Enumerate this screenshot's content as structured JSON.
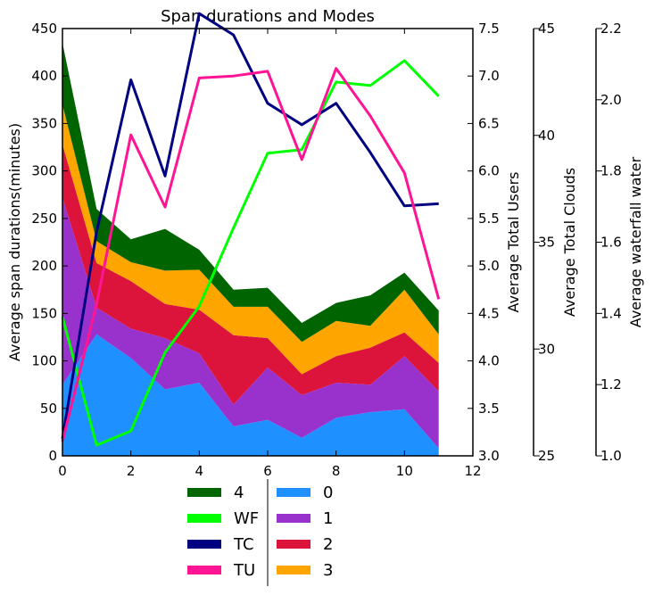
{
  "chart_data": {
    "type": "area",
    "title": "Span durations and Modes",
    "xlabel": "",
    "xlim": [
      0,
      12
    ],
    "xticks": [
      0,
      2,
      4,
      6,
      8,
      10,
      12
    ],
    "x": [
      0,
      1,
      2,
      3,
      4,
      5,
      6,
      7,
      8,
      9,
      10,
      11
    ],
    "grid": false,
    "legend_position": "bottom",
    "axes": [
      {
        "id": "y0",
        "label": "Average span durations(minutes)",
        "lim": [
          0,
          450
        ],
        "ticks": [
          0,
          50,
          100,
          150,
          200,
          250,
          300,
          350,
          400,
          450
        ]
      },
      {
        "id": "y1",
        "label": "Average Total Users",
        "lim": [
          3.0,
          7.5
        ],
        "ticks": [
          "3.0",
          "3.5",
          "4.0",
          "4.5",
          "5.0",
          "5.5",
          "6.0",
          "6.5",
          "7.0",
          "7.5"
        ]
      },
      {
        "id": "y2",
        "label": "Average Total Clouds",
        "lim": [
          25,
          45
        ],
        "ticks": [
          25,
          30,
          35,
          40,
          45
        ]
      },
      {
        "id": "y3",
        "label": "Average waterfall water",
        "lim": [
          1.0,
          2.2
        ],
        "ticks": [
          "1.0",
          "1.2",
          "1.4",
          "1.6",
          "1.8",
          "2.0",
          "2.2"
        ]
      }
    ],
    "stacked_series": [
      {
        "name": "0",
        "color": "#1e90ff",
        "values": [
          75,
          128,
          103,
          70,
          77,
          31,
          38,
          19,
          40,
          46,
          49,
          8
        ]
      },
      {
        "name": "1",
        "color": "#9932cc",
        "values": [
          197,
          28,
          31,
          54,
          31,
          23,
          55,
          45,
          37,
          29,
          56,
          60
        ]
      },
      {
        "name": "2",
        "color": "#dc143c",
        "values": [
          56,
          47,
          50,
          36,
          46,
          73,
          31,
          22,
          28,
          39,
          25,
          30
        ]
      },
      {
        "name": "3",
        "color": "#ffa500",
        "values": [
          42,
          23,
          20,
          35,
          42,
          30,
          33,
          34,
          37,
          23,
          45,
          30
        ]
      },
      {
        "name": "4",
        "color": "#006400",
        "values": [
          65,
          34,
          24,
          44,
          21,
          18,
          20,
          20,
          19,
          32,
          18,
          25
        ]
      }
    ],
    "line_series": [
      {
        "name": "WF",
        "color": "#00ff00",
        "axis": "y3",
        "values": [
          1.39,
          1.03,
          1.07,
          1.29,
          1.42,
          1.64,
          1.85,
          1.86,
          2.05,
          2.04,
          2.11,
          2.01
        ]
      },
      {
        "name": "TC",
        "color": "#000080",
        "axis": "y2",
        "values": [
          25.8,
          35.5,
          42.6,
          38.1,
          45.7,
          44.7,
          41.5,
          40.5,
          41.5,
          39.2,
          36.7,
          36.8
        ]
      },
      {
        "name": "TU",
        "color": "#ff1493",
        "axis": "y1",
        "values": [
          3.15,
          4.6,
          6.38,
          5.62,
          6.98,
          7.0,
          7.05,
          6.12,
          7.08,
          6.58,
          5.98,
          4.65
        ]
      }
    ],
    "legend": {
      "col1": [
        "4",
        "WF",
        "TC",
        "TU"
      ],
      "col2": [
        "0",
        "1",
        "2",
        "3"
      ]
    }
  }
}
